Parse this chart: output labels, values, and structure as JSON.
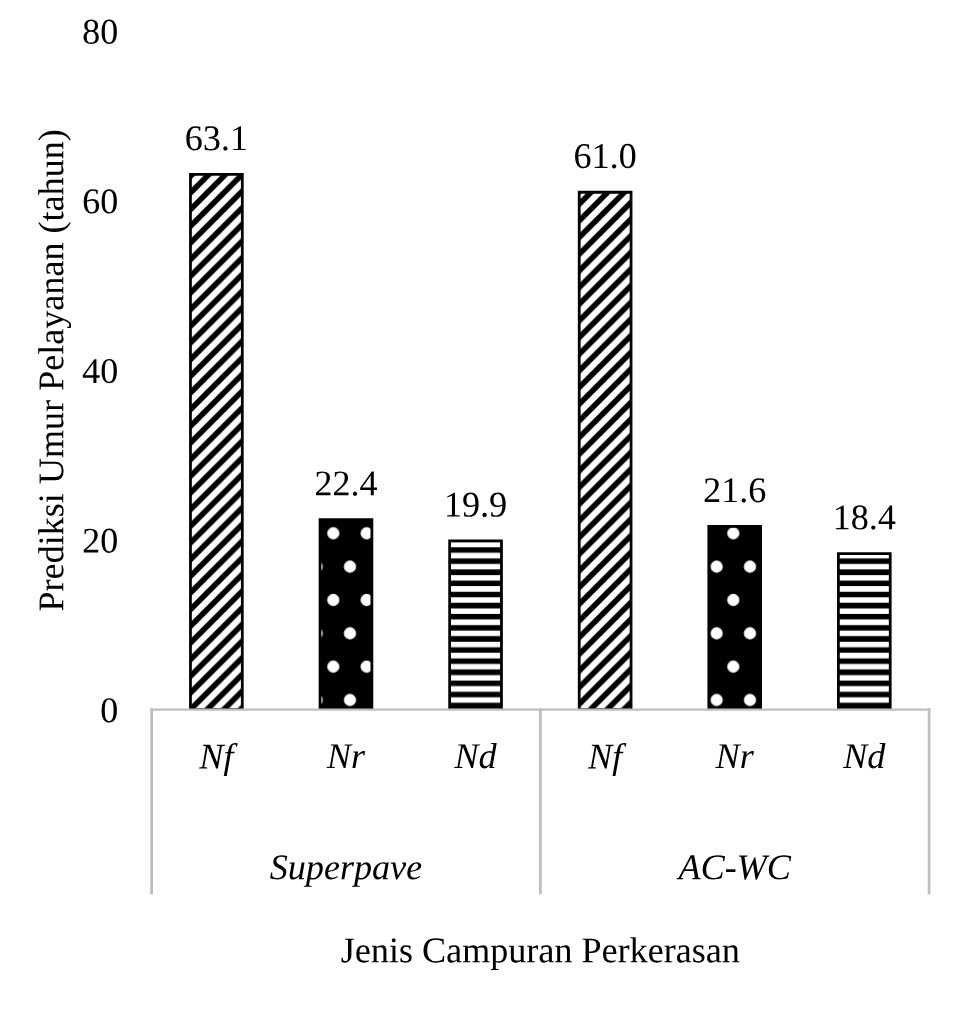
{
  "chart_data": {
    "type": "bar",
    "categories": [
      "Nf",
      "Nr",
      "Nd",
      "Nf",
      "Nr",
      "Nd"
    ],
    "values": [
      63.1,
      22.4,
      19.9,
      61.0,
      21.6,
      18.4
    ],
    "colors": [
      "#000000",
      "#000000",
      "#000000",
      "#000000",
      "#000000",
      "#000000"
    ],
    "value_labels": [
      "63.1",
      "22.4",
      "19.9",
      "61.0",
      "21.6",
      "18.4"
    ],
    "ylim": [
      0,
      80
    ],
    "yticks": [
      0,
      20,
      40,
      60,
      80
    ],
    "ylabel": "Prediksi Umur Pelayanan (tahun)",
    "xlabel": "Jenis Campuran Perkerasan",
    "annotations": [
      "Superpave",
      "AC-WC"
    ],
    "grid": false,
    "legend": false
  }
}
